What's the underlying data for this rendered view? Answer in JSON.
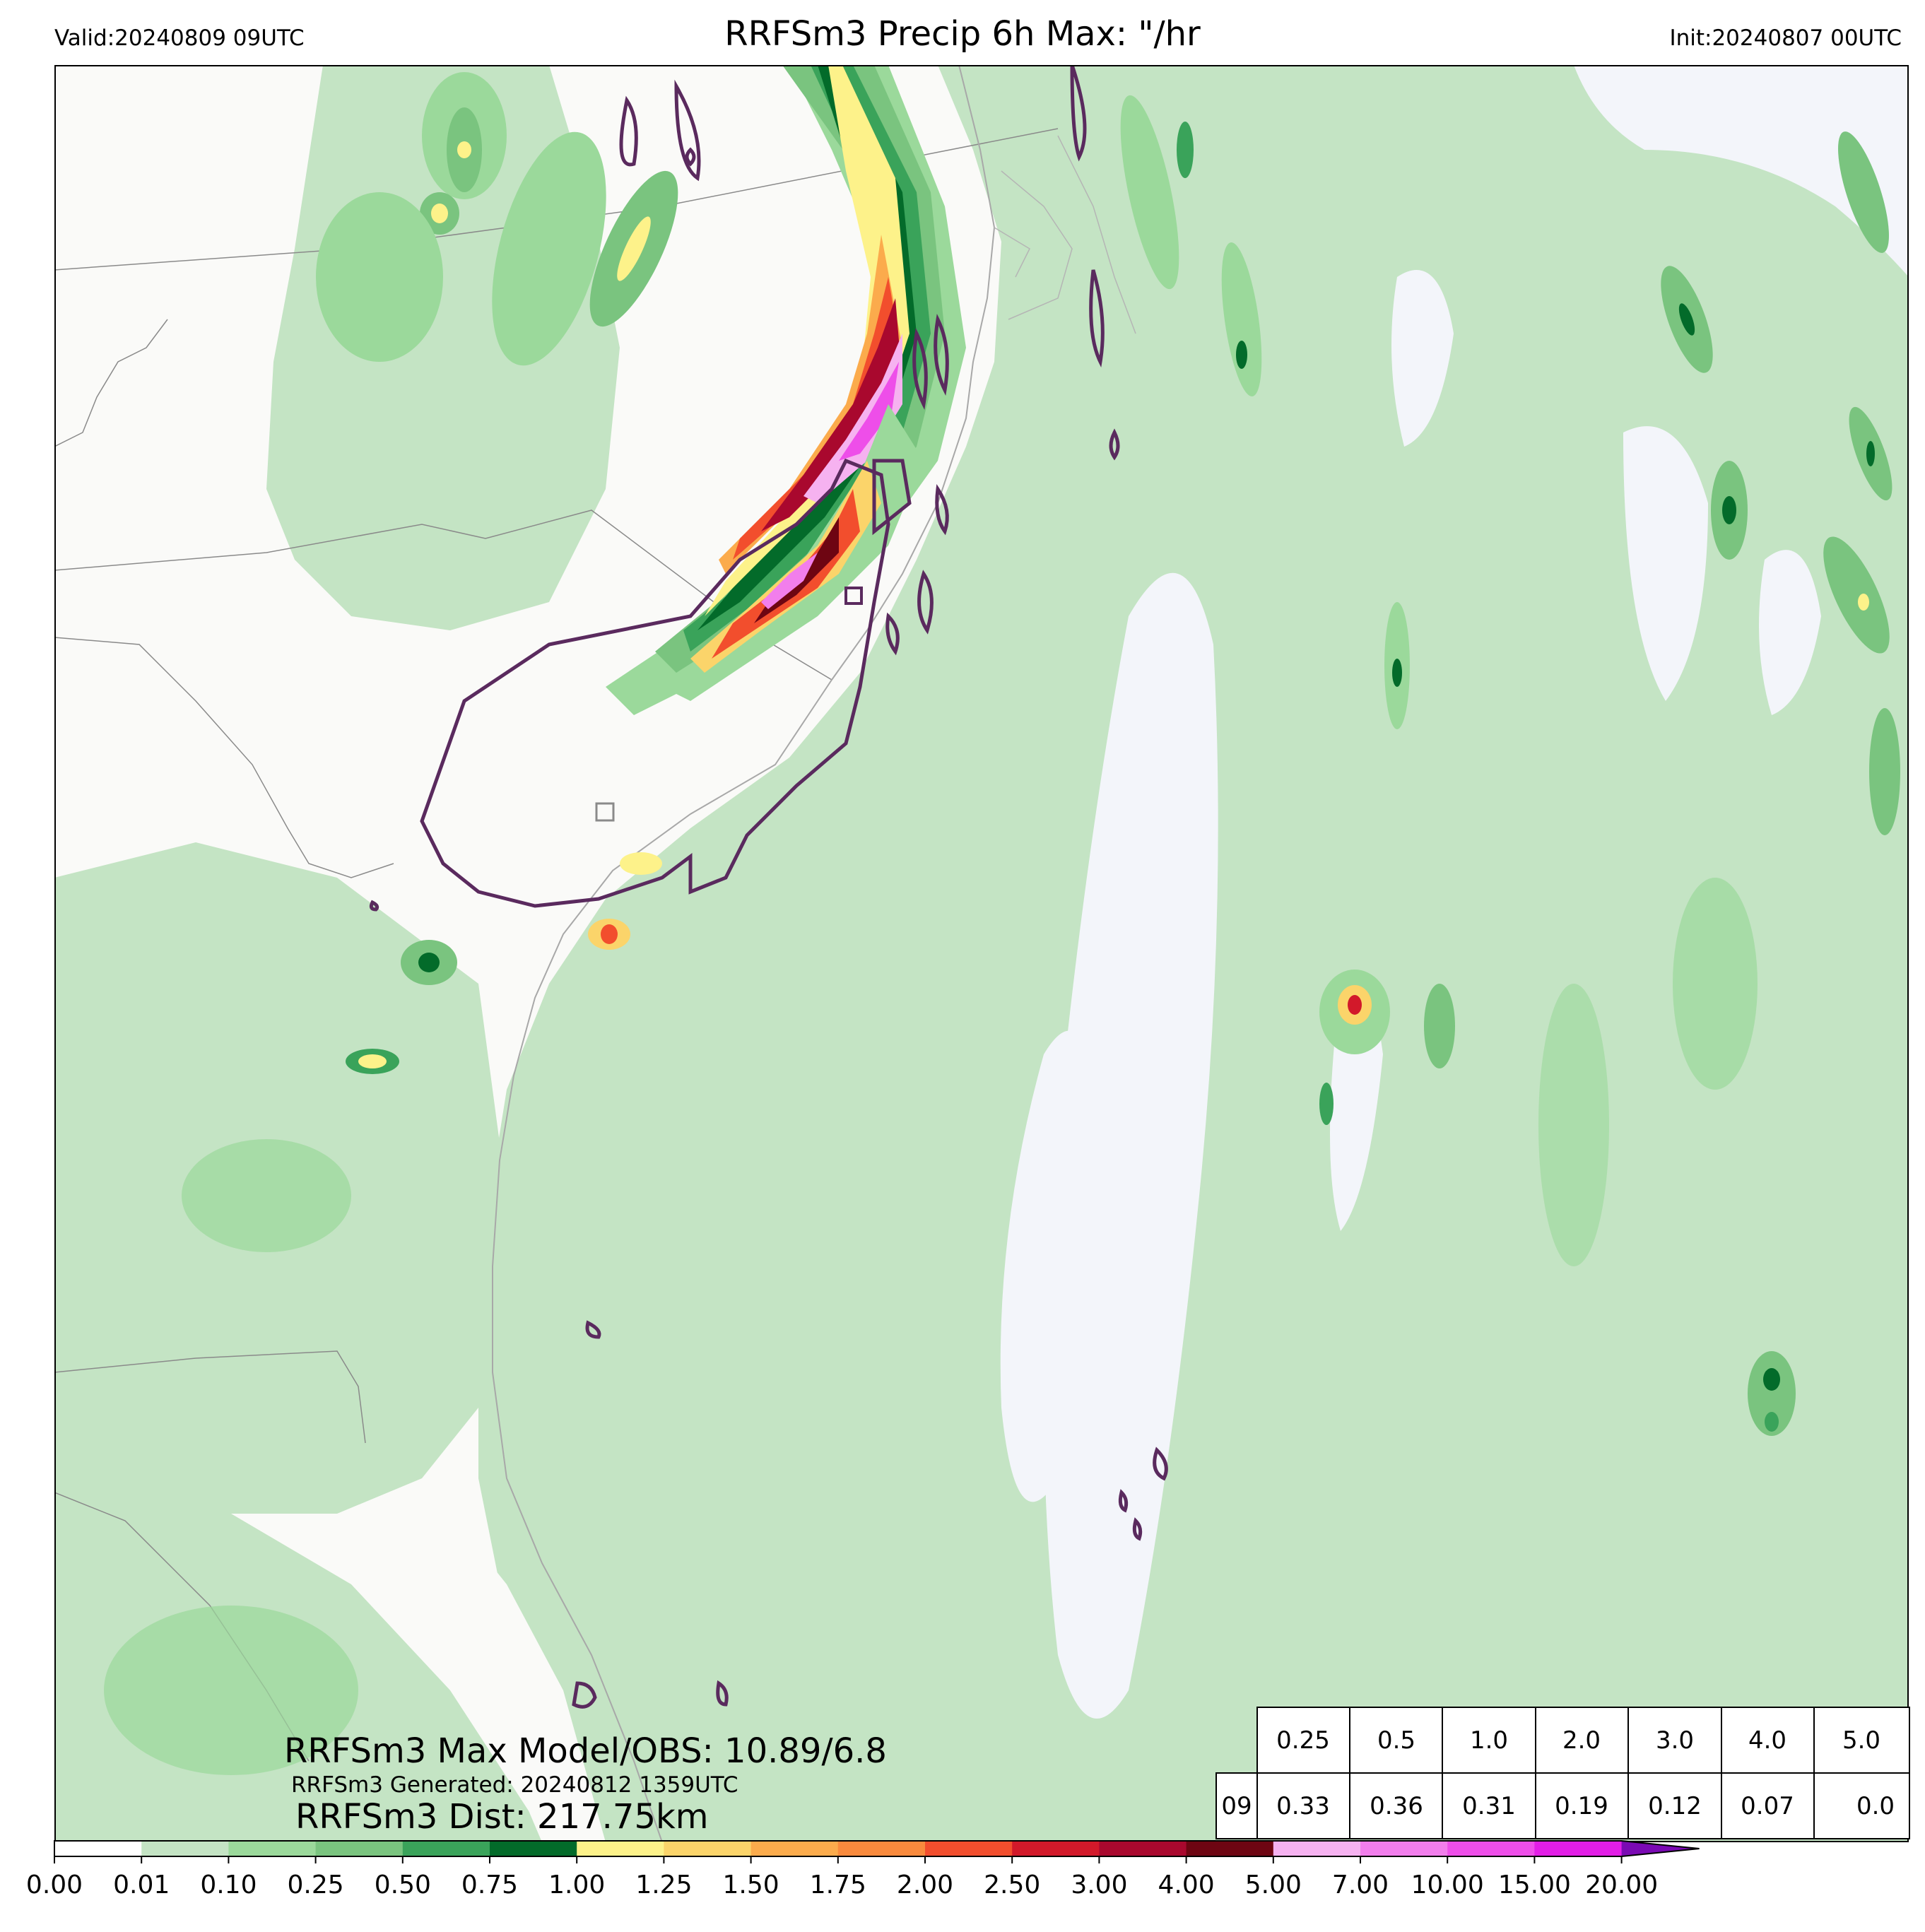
{
  "header": {
    "title": "RRFSm3 Precip 6h Max: \"/hr",
    "valid": "Valid:20240809 09UTC",
    "init": "Init:20240807 00UTC"
  },
  "stats": {
    "max_model_obs": "RRFSm3 Max Model/OBS: 10.89/6.8",
    "generated": "RRFSm3 Generated: 20240812 1359UTC",
    "distance": "RRFSm3 Dist: 217.75km"
  },
  "threshold_table": {
    "thresholds": [
      "0.25",
      "0.5",
      "1.0",
      "2.0",
      "3.0",
      "4.0",
      "5.0"
    ],
    "row_label": "09",
    "values": [
      "0.33",
      "0.36",
      "0.31",
      "0.19",
      "0.12",
      "0.07",
      "0.0"
    ]
  },
  "colorbar": {
    "labels": [
      "0.00",
      "0.01",
      "0.10",
      "0.25",
      "0.50",
      "0.75",
      "1.00",
      "1.25",
      "1.50",
      "1.75",
      "2.00",
      "2.50",
      "3.00",
      "4.00",
      "5.00",
      "7.00",
      "10.00",
      "15.00",
      "20.00"
    ],
    "colors": [
      "#ffffff",
      "#c4e4c4",
      "#9bd99b",
      "#7ac47f",
      "#3aa35a",
      "#036b2a",
      "#fdf28a",
      "#fbd46a",
      "#fbab4c",
      "#f98a3d",
      "#f24e2d",
      "#d2192a",
      "#a9082e",
      "#6e0512",
      "#f6b2f0",
      "#f27eec",
      "#ee4ee9",
      "#e21ee6",
      "#9a0dcf"
    ],
    "extend_color": "#7a0ab3"
  },
  "map_colors": {
    "background": "#fafaf8",
    "ocean_dry": "#f3f5fa",
    "precip_light": "#c4e4c4",
    "observed_contour": "#5a2a5e"
  }
}
